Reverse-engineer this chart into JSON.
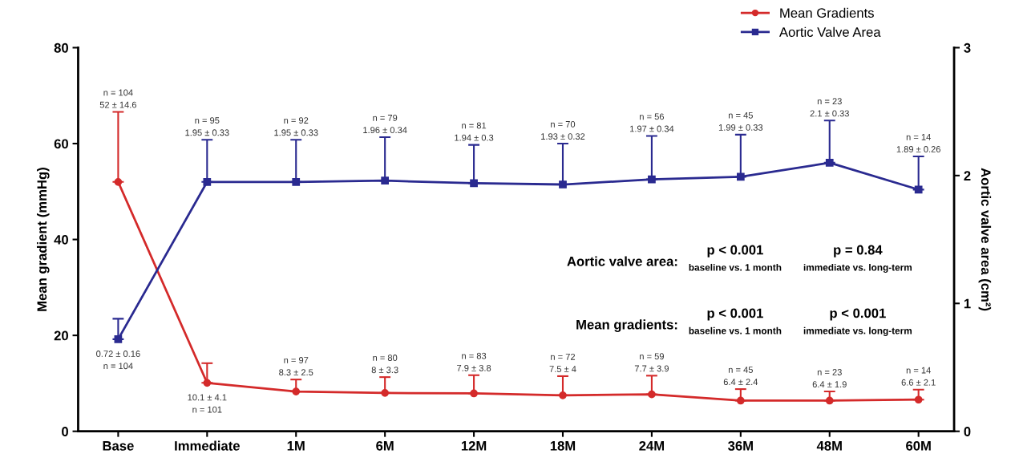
{
  "chart_data": {
    "type": "line",
    "categories": [
      "Base",
      "Immediate",
      "1M",
      "6M",
      "12M",
      "18M",
      "24M",
      "36M",
      "48M",
      "60M"
    ],
    "ylabel": "Mean gradient (mmHg)",
    "y2label": "Aortic valve area (cm²)",
    "ylim": [
      0,
      80
    ],
    "yticks": [
      0,
      20,
      40,
      60,
      80
    ],
    "y2lim": [
      0,
      3
    ],
    "y2ticks": [
      0,
      1,
      2,
      3
    ],
    "grid": false,
    "legend": "top right",
    "series": [
      {
        "name": "Mean Gradients",
        "color": "#d42a2a",
        "marker": "circle",
        "values": [
          52,
          10.1,
          8.3,
          8,
          7.9,
          7.5,
          7.7,
          6.4,
          6.4,
          6.6
        ],
        "errors": [
          [
            52,
            66.6
          ],
          [
            10.1,
            14.2
          ],
          [
            8.3,
            10.8
          ],
          [
            8,
            11.3
          ],
          [
            7.9,
            11.7
          ],
          [
            7.5,
            11.5
          ],
          [
            7.7,
            11.6
          ],
          [
            6.4,
            8.8
          ],
          [
            6.4,
            8.3
          ],
          [
            6.6,
            8.7
          ]
        ]
      },
      {
        "name": "Aortic Valve Area",
        "color": "#2a2a90",
        "marker": "square",
        "axis": "y2",
        "values": [
          0.72,
          1.95,
          1.95,
          1.96,
          1.94,
          1.93,
          1.97,
          1.99,
          2.1,
          1.89
        ],
        "errors": [
          [
            0.72,
            0.88
          ],
          [
            1.95,
            2.28
          ],
          [
            1.95,
            2.28
          ],
          [
            1.96,
            2.3
          ],
          [
            1.94,
            2.24
          ],
          [
            1.93,
            2.25
          ],
          [
            1.97,
            2.31
          ],
          [
            1.99,
            2.32
          ],
          [
            2.1,
            2.43
          ],
          [
            1.89,
            2.15
          ]
        ]
      }
    ],
    "annotations": [
      "n = 104\n52 ± 14.6",
      "10.1 ± 4.1\nn = 101",
      "n = 97\n8.3 ± 2.5",
      "n = 80\n8 ± 3.3",
      "n = 83\n7.9 ± 3.8",
      "n = 72\n7.5 ± 4",
      "n = 59\n7.7 ± 3.9",
      "n = 45\n6.4 ± 2.4",
      "n = 23\n6.4 ± 1.9",
      "n = 14\n6.6 ± 2.1",
      "0.72 ± 0.16\nn = 104",
      "n = 95\n1.95 ± 0.33",
      "n = 92\n1.95 ± 0.33",
      "n = 79\n1.96 ± 0.34",
      "n = 81\n1.94 ± 0.3",
      "n = 70\n1.93 ± 0.32",
      "n = 56\n1.97 ± 0.34",
      "n = 45\n1.99 ± 0.33",
      "n = 23\n2.1 ± 0.33",
      "n = 14\n1.89 ± 0.26",
      "Aortic valve area:",
      "p < 0.001",
      "baseline vs. 1 month",
      "p = 0.84",
      "immediate vs. long-term",
      "Mean gradients:",
      "p < 0.001",
      "baseline vs. 1 month",
      "p < 0.001",
      "immediate vs. long-term"
    ]
  }
}
